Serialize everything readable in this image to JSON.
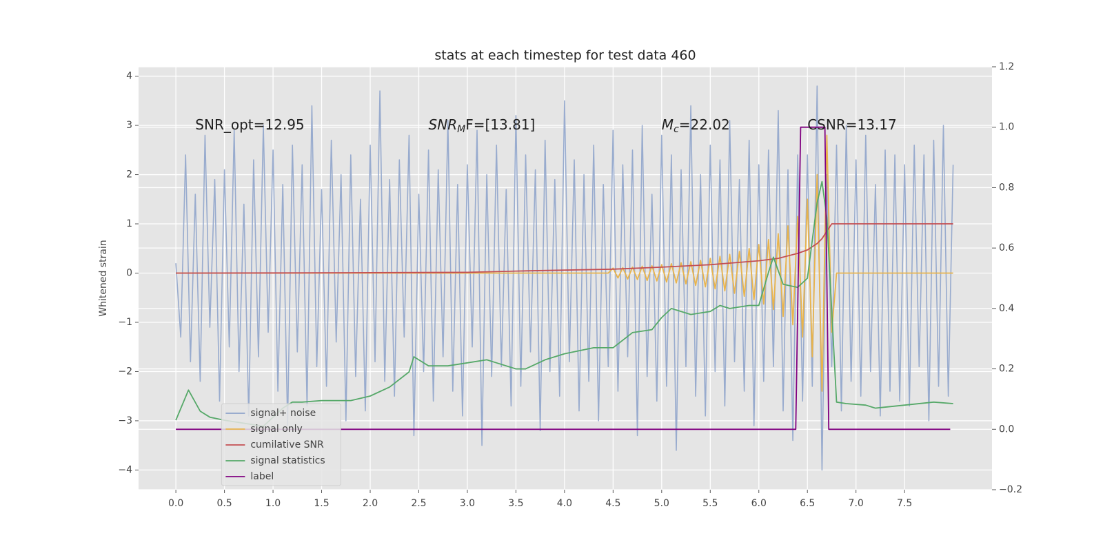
{
  "chart_data": {
    "type": "line",
    "title": "stats at each timestep for test data 460",
    "ylabel": "Whitened strain",
    "xlim": [
      -0.384,
      8.4
    ],
    "ylim": [
      -4.4,
      4.19
    ],
    "y2lim": [
      -0.2,
      1.2
    ],
    "xticks": [
      {
        "value": 0,
        "label": "0.0"
      },
      {
        "value": 0.5,
        "label": "0.5"
      },
      {
        "value": 1,
        "label": "1.0"
      },
      {
        "value": 1.5,
        "label": "1.5"
      },
      {
        "value": 2,
        "label": "2.0"
      },
      {
        "value": 2.5,
        "label": "2.5"
      },
      {
        "value": 3,
        "label": "3.0"
      },
      {
        "value": 3.5,
        "label": "3.5"
      },
      {
        "value": 4,
        "label": "4.0"
      },
      {
        "value": 4.5,
        "label": "4.5"
      },
      {
        "value": 5,
        "label": "5.0"
      },
      {
        "value": 5.5,
        "label": "5.5"
      },
      {
        "value": 6,
        "label": "6.0"
      },
      {
        "value": 6.5,
        "label": "6.5"
      },
      {
        "value": 7,
        "label": "7.0"
      },
      {
        "value": 7.5,
        "label": "7.5"
      }
    ],
    "yticks": [
      {
        "value": -4,
        "label": "−4"
      },
      {
        "value": -3,
        "label": "−3"
      },
      {
        "value": -2,
        "label": "−2"
      },
      {
        "value": -1,
        "label": "−1"
      },
      0,
      1,
      2,
      3,
      4
    ],
    "y2ticks": [
      {
        "value": -0.2,
        "label": "−0.2"
      },
      {
        "value": 0,
        "label": "0.0"
      },
      {
        "value": 0.2,
        "label": "0.2"
      },
      {
        "value": 0.4,
        "label": "0.4"
      },
      {
        "value": 0.6,
        "label": "0.6"
      },
      {
        "value": 0.8,
        "label": "0.8"
      },
      {
        "value": 1,
        "label": "1.0"
      },
      {
        "value": 1.2,
        "label": "1.2"
      }
    ],
    "grid": true,
    "legend_loc": "lower left",
    "annotations": [
      {
        "text": "SNR_opt=12.95",
        "x": 0.2,
        "y": 3
      },
      {
        "text": "SNR",
        "sub": "M",
        "rest": "F=[13.81]",
        "x": 2.6,
        "y": 3
      },
      {
        "text": "M",
        "sub": "c",
        "rest": "=22.02",
        "x": 5.0,
        "y": 3
      },
      {
        "text": "CSNR=13.17",
        "x": 6.5,
        "y": 3
      }
    ],
    "series": [
      {
        "name": "signal+ noise",
        "color": "#8fa4cb",
        "x": [
          0,
          0.05,
          0.1,
          0.15,
          0.2,
          0.25,
          0.3,
          0.35,
          0.4,
          0.45,
          0.5,
          0.55,
          0.6,
          0.65,
          0.7,
          0.75,
          0.8,
          0.85,
          0.9,
          0.95,
          1,
          1.05,
          1.1,
          1.15,
          1.2,
          1.25,
          1.3,
          1.35,
          1.4,
          1.45,
          1.5,
          1.55,
          1.6,
          1.65,
          1.7,
          1.75,
          1.8,
          1.85,
          1.9,
          1.95,
          2,
          2.05,
          2.1,
          2.15,
          2.2,
          2.25,
          2.3,
          2.35,
          2.4,
          2.45,
          2.5,
          2.55,
          2.6,
          2.65,
          2.7,
          2.75,
          2.8,
          2.85,
          2.9,
          2.95,
          3,
          3.05,
          3.1,
          3.15,
          3.2,
          3.25,
          3.3,
          3.35,
          3.4,
          3.45,
          3.5,
          3.55,
          3.6,
          3.65,
          3.7,
          3.75,
          3.8,
          3.85,
          3.9,
          3.95,
          4,
          4.05,
          4.1,
          4.15,
          4.2,
          4.25,
          4.3,
          4.35,
          4.4,
          4.45,
          4.5,
          4.55,
          4.6,
          4.65,
          4.7,
          4.75,
          4.8,
          4.85,
          4.9,
          4.95,
          5,
          5.05,
          5.1,
          5.15,
          5.2,
          5.25,
          5.3,
          5.35,
          5.4,
          5.45,
          5.5,
          5.55,
          5.6,
          5.65,
          5.7,
          5.75,
          5.8,
          5.85,
          5.9,
          5.95,
          6,
          6.05,
          6.1,
          6.15,
          6.2,
          6.25,
          6.3,
          6.35,
          6.4,
          6.45,
          6.5,
          6.55,
          6.6,
          6.65,
          6.7,
          6.75,
          6.8,
          6.85,
          6.9,
          6.95,
          7,
          7.05,
          7.1,
          7.15,
          7.2,
          7.25,
          7.3,
          7.35,
          7.4,
          7.45,
          7.5,
          7.55,
          7.6,
          7.65,
          7.7,
          7.75,
          7.8,
          7.85,
          7.9,
          7.95,
          8
        ],
        "values": [
          0.2,
          -1.3,
          2.4,
          -1.8,
          1.6,
          -2.2,
          2.8,
          -1.1,
          1.9,
          -2.6,
          2.1,
          -1.5,
          2.9,
          -2.0,
          1.4,
          -2.9,
          2.3,
          -1.7,
          3.0,
          -1.2,
          2.5,
          -2.4,
          1.8,
          -3.1,
          2.6,
          -1.6,
          2.2,
          -2.7,
          3.4,
          -1.9,
          1.7,
          -2.3,
          2.7,
          -1.4,
          2.0,
          -3.0,
          2.4,
          -2.1,
          1.5,
          -2.8,
          2.6,
          -1.8,
          3.7,
          -2.2,
          1.9,
          -2.5,
          2.3,
          -1.3,
          2.8,
          -3.3,
          1.6,
          -2.0,
          2.5,
          -2.6,
          2.1,
          -1.7,
          3.1,
          -2.4,
          1.8,
          -2.9,
          2.2,
          -1.5,
          2.9,
          -3.5,
          2.0,
          -2.1,
          2.6,
          -1.9,
          1.7,
          -2.7,
          3.2,
          -2.3,
          2.4,
          -1.6,
          2.1,
          -3.2,
          2.7,
          -2.0,
          1.9,
          -2.5,
          3.5,
          -1.8,
          2.3,
          -2.8,
          2.0,
          -2.2,
          2.6,
          -3.0,
          1.8,
          -1.9,
          2.9,
          -2.4,
          2.2,
          -1.7,
          2.5,
          -3.3,
          3.0,
          -2.1,
          1.6,
          -2.6,
          2.8,
          -2.3,
          2.4,
          -3.6,
          2.1,
          -1.9,
          3.4,
          -2.5,
          2.0,
          -2.9,
          2.6,
          -2.0,
          2.3,
          -2.7,
          3.1,
          -1.8,
          1.9,
          -2.4,
          2.7,
          -3.1,
          2.2,
          -2.2,
          2.5,
          -1.9,
          3.3,
          -2.8,
          2.1,
          -3.4,
          2.4,
          -2.6,
          2.4,
          -2.3,
          3.8,
          -4.0,
          2.0,
          -1.9,
          2.6,
          -2.8,
          3.0,
          -2.2,
          2.3,
          -2.5,
          2.8,
          -2.0,
          1.8,
          -2.9,
          2.5,
          -2.4,
          2.4,
          -2.6,
          2.2,
          -2.7,
          2.6,
          -1.9,
          2.4,
          -3.0,
          2.7,
          -2.3,
          3.0,
          -2.5,
          2.2
        ]
      },
      {
        "name": "signal only",
        "color": "#e9b44c",
        "x": [
          0,
          4.45,
          4.5,
          4.55,
          4.6,
          4.65,
          4.7,
          4.75,
          4.8,
          4.85,
          4.9,
          4.95,
          5,
          5.05,
          5.1,
          5.15,
          5.2,
          5.25,
          5.3,
          5.35,
          5.4,
          5.45,
          5.5,
          5.55,
          5.6,
          5.65,
          5.7,
          5.75,
          5.8,
          5.85,
          5.9,
          5.95,
          6,
          6.05,
          6.1,
          6.15,
          6.2,
          6.25,
          6.3,
          6.35,
          6.4,
          6.45,
          6.5,
          6.55,
          6.6,
          6.65,
          6.7,
          6.75,
          6.8,
          8
        ],
        "values": [
          0,
          0,
          0.1,
          -0.1,
          0.11,
          -0.12,
          0.12,
          -0.13,
          0.14,
          -0.15,
          0.15,
          -0.16,
          0.17,
          -0.18,
          0.19,
          -0.2,
          0.21,
          -0.22,
          0.23,
          -0.25,
          0.26,
          -0.28,
          0.3,
          -0.32,
          0.34,
          -0.36,
          0.38,
          -0.41,
          0.44,
          -0.47,
          0.5,
          -0.54,
          0.58,
          -0.63,
          0.68,
          -0.74,
          0.8,
          -0.88,
          0.96,
          -1.05,
          1.15,
          -1.3,
          1.5,
          -1.7,
          2.0,
          -2.4,
          2.8,
          -1.2,
          0,
          0
        ]
      },
      {
        "name": "cumilative SNR",
        "color": "#c44e52",
        "x": [
          0,
          1,
          2,
          3,
          3.5,
          4,
          4.5,
          5,
          5.5,
          6,
          6.2,
          6.4,
          6.5,
          6.6,
          6.65,
          6.7,
          6.75,
          8
        ],
        "values": [
          0,
          0.003,
          0.008,
          0.015,
          0.04,
          0.06,
          0.08,
          0.12,
          0.17,
          0.25,
          0.3,
          0.4,
          0.47,
          0.6,
          0.7,
          0.85,
          1.0,
          1.0
        ]
      },
      {
        "name": "signal statistics",
        "color": "#55a868",
        "axis": "y2",
        "x": [
          0,
          0.13,
          0.25,
          0.35,
          0.5,
          0.7,
          0.9,
          1.1,
          1.2,
          1.3,
          1.5,
          1.8,
          2.0,
          2.2,
          2.4,
          2.45,
          2.6,
          2.8,
          3.0,
          3.2,
          3.3,
          3.5,
          3.6,
          3.8,
          4.0,
          4.3,
          4.5,
          4.7,
          4.9,
          5.0,
          5.1,
          5.3,
          5.5,
          5.6,
          5.7,
          5.9,
          6.0,
          6.1,
          6.15,
          6.25,
          6.4,
          6.5,
          6.6,
          6.65,
          6.7,
          6.8,
          6.9,
          7.1,
          7.2,
          7.5,
          7.8,
          8.0
        ],
        "values": [
          0.03,
          0.13,
          0.06,
          0.04,
          0.03,
          0.02,
          0.01,
          0.07,
          0.09,
          0.09,
          0.095,
          0.095,
          0.11,
          0.14,
          0.19,
          0.24,
          0.21,
          0.21,
          0.22,
          0.23,
          0.22,
          0.2,
          0.2,
          0.23,
          0.25,
          0.27,
          0.27,
          0.32,
          0.33,
          0.37,
          0.4,
          0.38,
          0.39,
          0.41,
          0.4,
          0.41,
          0.41,
          0.52,
          0.57,
          0.48,
          0.47,
          0.5,
          0.75,
          0.82,
          0.7,
          0.09,
          0.085,
          0.08,
          0.07,
          0.08,
          0.09,
          0.085
        ]
      },
      {
        "name": "label",
        "color": "#800080",
        "axis": "y2",
        "x": [
          0,
          6.38,
          6.43,
          6.68,
          6.72,
          7.97
        ],
        "values": [
          0,
          0,
          1,
          1,
          0,
          0
        ]
      }
    ]
  }
}
